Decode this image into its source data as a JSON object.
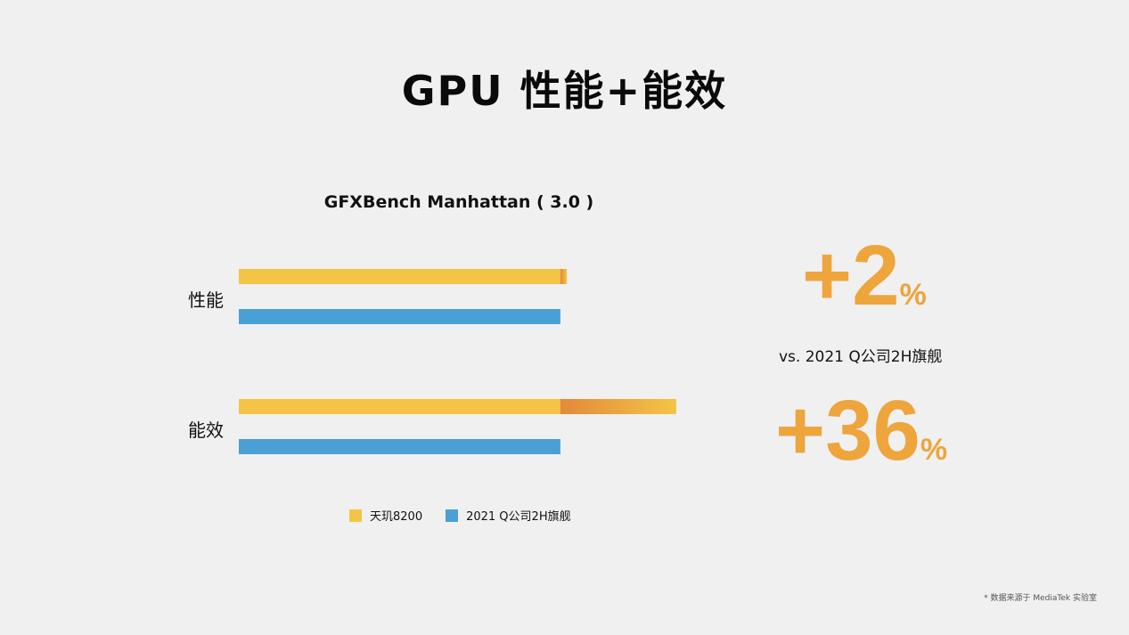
{
  "page": {
    "title": "GPU 性能+能效",
    "footnote": "* 数据来源于 MediaTek 实验室"
  },
  "colors": {
    "background": "#f0f0f0",
    "dimensity": "#f4c445",
    "competitor": "#4a9fd4",
    "gain_orange": "#e38a3a",
    "stat_orange": "#eda53c"
  },
  "chart_data": {
    "type": "bar",
    "orientation": "horizontal",
    "title": "GFXBench Manhattan ( 3.0 )",
    "categories": [
      "性能",
      "能效"
    ],
    "series": [
      {
        "name": "天玑8200",
        "values": [
          102,
          136
        ],
        "color": "#f4c445"
      },
      {
        "name": "2021 Q公司2H旗舰",
        "values": [
          100,
          100
        ],
        "color": "#4a9fd4"
      }
    ],
    "xlim": [
      0,
      138
    ],
    "grid": false,
    "legend_position": "bottom"
  },
  "stats": {
    "perf": {
      "plus": "+",
      "value": "2",
      "unit": "%"
    },
    "efficiency": {
      "plus": "+",
      "value": "36",
      "unit": "%"
    },
    "vs_label": "vs. 2021 Q公司2H旗舰"
  }
}
